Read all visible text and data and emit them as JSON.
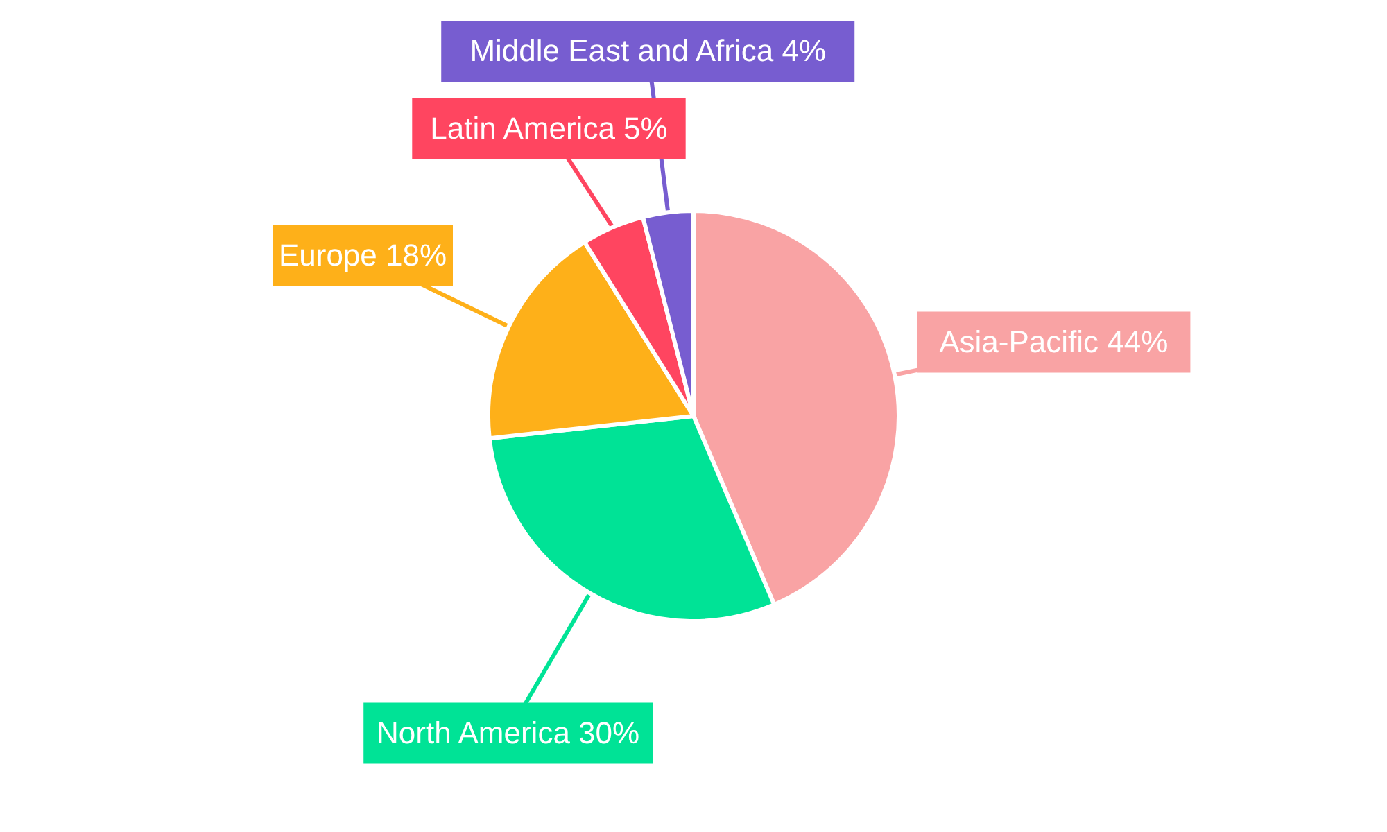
{
  "chart_data": {
    "type": "pie",
    "categories": [
      "Asia-Pacific",
      "North America",
      "Europe",
      "Latin America",
      "Middle East and Africa"
    ],
    "values": [
      44,
      30,
      18,
      5,
      4
    ],
    "value_labels": [
      "44%",
      "30%",
      "18%",
      "5%",
      "4%"
    ],
    "colors": [
      "#f9a3a4",
      "#00e396",
      "#feb019",
      "#ff4560",
      "#775dd0"
    ]
  }
}
